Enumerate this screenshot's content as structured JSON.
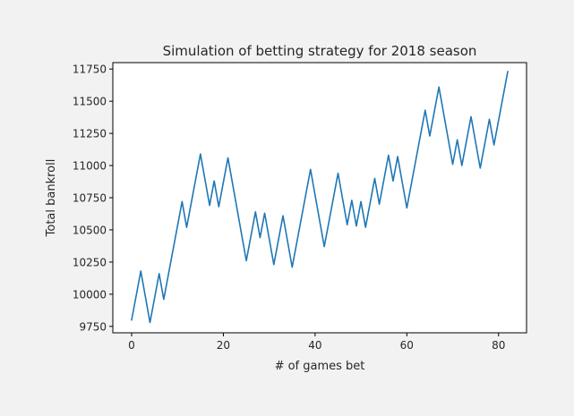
{
  "chart_data": {
    "type": "line",
    "title": "Simulation of betting strategy for 2018 season",
    "xlabel": "# of games bet",
    "ylabel": "Total bankroll",
    "xlim": [
      -4.1,
      86.1
    ],
    "ylim": [
      9700,
      11800
    ],
    "xticks": [
      0,
      20,
      40,
      60,
      80
    ],
    "yticks": [
      9750,
      10000,
      10250,
      10500,
      10750,
      11000,
      11250,
      11500,
      11750
    ],
    "grid": false,
    "series": [
      {
        "color": "#1f77b4",
        "x": [
          0,
          2,
          4,
          6,
          7,
          11,
          12,
          15,
          17,
          18,
          19,
          21,
          25,
          27,
          28,
          29,
          31,
          33,
          35,
          39,
          42,
          45,
          47,
          48,
          49,
          50,
          51,
          53,
          54,
          56,
          57,
          58,
          60,
          64,
          65,
          67,
          70,
          71,
          72,
          74,
          76,
          78,
          79,
          82
        ],
        "y": [
          9800,
          10180,
          9780,
          10160,
          9960,
          10720,
          10520,
          11090,
          10690,
          10880,
          10680,
          11060,
          10260,
          10640,
          10440,
          10630,
          10230,
          10610,
          10210,
          10970,
          10370,
          10940,
          10540,
          10730,
          10530,
          10720,
          10520,
          10900,
          10700,
          11080,
          10880,
          11070,
          10670,
          11430,
          11230,
          11610,
          11010,
          11200,
          11000,
          11380,
          10980,
          11360,
          11160,
          11730
        ]
      }
    ]
  }
}
